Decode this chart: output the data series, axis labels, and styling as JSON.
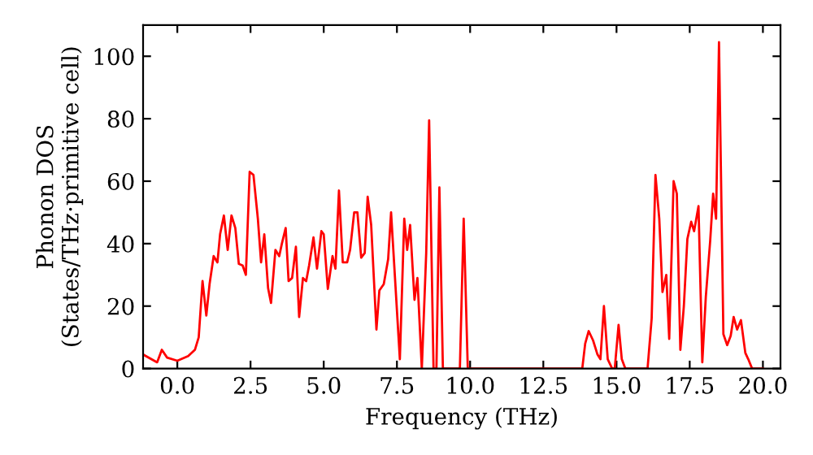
{
  "chart_data": {
    "type": "line",
    "xlabel": "Frequency (THz)",
    "ylabel": "Phonon DOS\n(States/THz·primitive cell)",
    "xlim": [
      -1.17,
      20.6
    ],
    "ylim": [
      0,
      110
    ],
    "xticks": [
      {
        "value": 0,
        "label": "0.0"
      },
      {
        "value": 2.5,
        "label": "2.5"
      },
      {
        "value": 5,
        "label": "5.0"
      },
      {
        "value": 7.5,
        "label": "7.5"
      },
      {
        "value": 10,
        "label": "10.0"
      },
      {
        "value": 12.5,
        "label": "12.5"
      },
      {
        "value": 15,
        "label": "15.0"
      },
      {
        "value": 17.5,
        "label": "17.5"
      },
      {
        "value": 20,
        "label": "20.0"
      }
    ],
    "yticks": [
      0,
      20,
      40,
      60,
      80,
      100
    ],
    "grid": false,
    "marker": "none",
    "line_style": "solid",
    "series": [
      {
        "color": "#ff0000",
        "x": [
          -1.17,
          -0.69,
          -0.53,
          -0.35,
          0,
          0.37,
          0.6,
          0.73,
          0.86,
          0.99,
          1.1,
          1.24,
          1.37,
          1.46,
          1.59,
          1.72,
          1.85,
          1.98,
          2.1,
          2.23,
          2.34,
          2.47,
          2.6,
          2.75,
          2.86,
          2.97,
          3.1,
          3.2,
          3.35,
          3.48,
          3.57,
          3.7,
          3.8,
          3.92,
          4.05,
          4.16,
          4.29,
          4.4,
          4.5,
          4.65,
          4.77,
          4.92,
          5.0,
          5.14,
          5.3,
          5.4,
          5.52,
          5.65,
          5.8,
          5.9,
          6.04,
          6.15,
          6.28,
          6.4,
          6.5,
          6.62,
          6.8,
          6.9,
          7.05,
          7.2,
          7.3,
          7.6,
          7.75,
          7.85,
          7.95,
          8.1,
          8.2,
          8.35,
          8.5,
          8.6,
          8.75,
          8.85,
          8.95,
          9.07,
          9.65,
          9.78,
          9.92,
          13.83,
          13.93,
          14.05,
          14.2,
          14.35,
          14.45,
          14.57,
          14.7,
          14.85,
          14.94,
          15.07,
          15.18,
          15.3,
          16.06,
          16.2,
          16.33,
          16.46,
          16.57,
          16.7,
          16.8,
          16.95,
          17.06,
          17.18,
          17.3,
          17.42,
          17.55,
          17.65,
          17.8,
          17.93,
          18.05,
          18.2,
          18.3,
          18.4,
          18.5,
          18.65,
          18.78,
          18.9,
          19.0,
          19.12,
          19.25,
          19.4,
          19.5,
          19.63,
          20.0
        ],
        "values": [
          4.5,
          2,
          6,
          3.5,
          2.5,
          4,
          6,
          10,
          28,
          17,
          27,
          36,
          34,
          43,
          49,
          38,
          49,
          45,
          33.5,
          33,
          30,
          63,
          62,
          48,
          34,
          43,
          25.7,
          21,
          38,
          36,
          40,
          45,
          28,
          29,
          39,
          16.5,
          29,
          28,
          33,
          42,
          32,
          44,
          43,
          25.5,
          36,
          32,
          57,
          34,
          34,
          38,
          50,
          50,
          35.5,
          37,
          55,
          46,
          12.5,
          25,
          27,
          35,
          50,
          3,
          48,
          38,
          46,
          22,
          29,
          0,
          37,
          79.5,
          0,
          0,
          58,
          0,
          0,
          48,
          0,
          0,
          8,
          12,
          9,
          4.5,
          3,
          20,
          3,
          0,
          0,
          14,
          3,
          0,
          0,
          16,
          62,
          48,
          24.5,
          30,
          9.5,
          60,
          56,
          6,
          20,
          41.5,
          47,
          44,
          52,
          2,
          23,
          41,
          56,
          48,
          104.5,
          11,
          7.5,
          10.5,
          16.5,
          12.5,
          15.5,
          5,
          3,
          0,
          0
        ]
      }
    ]
  }
}
